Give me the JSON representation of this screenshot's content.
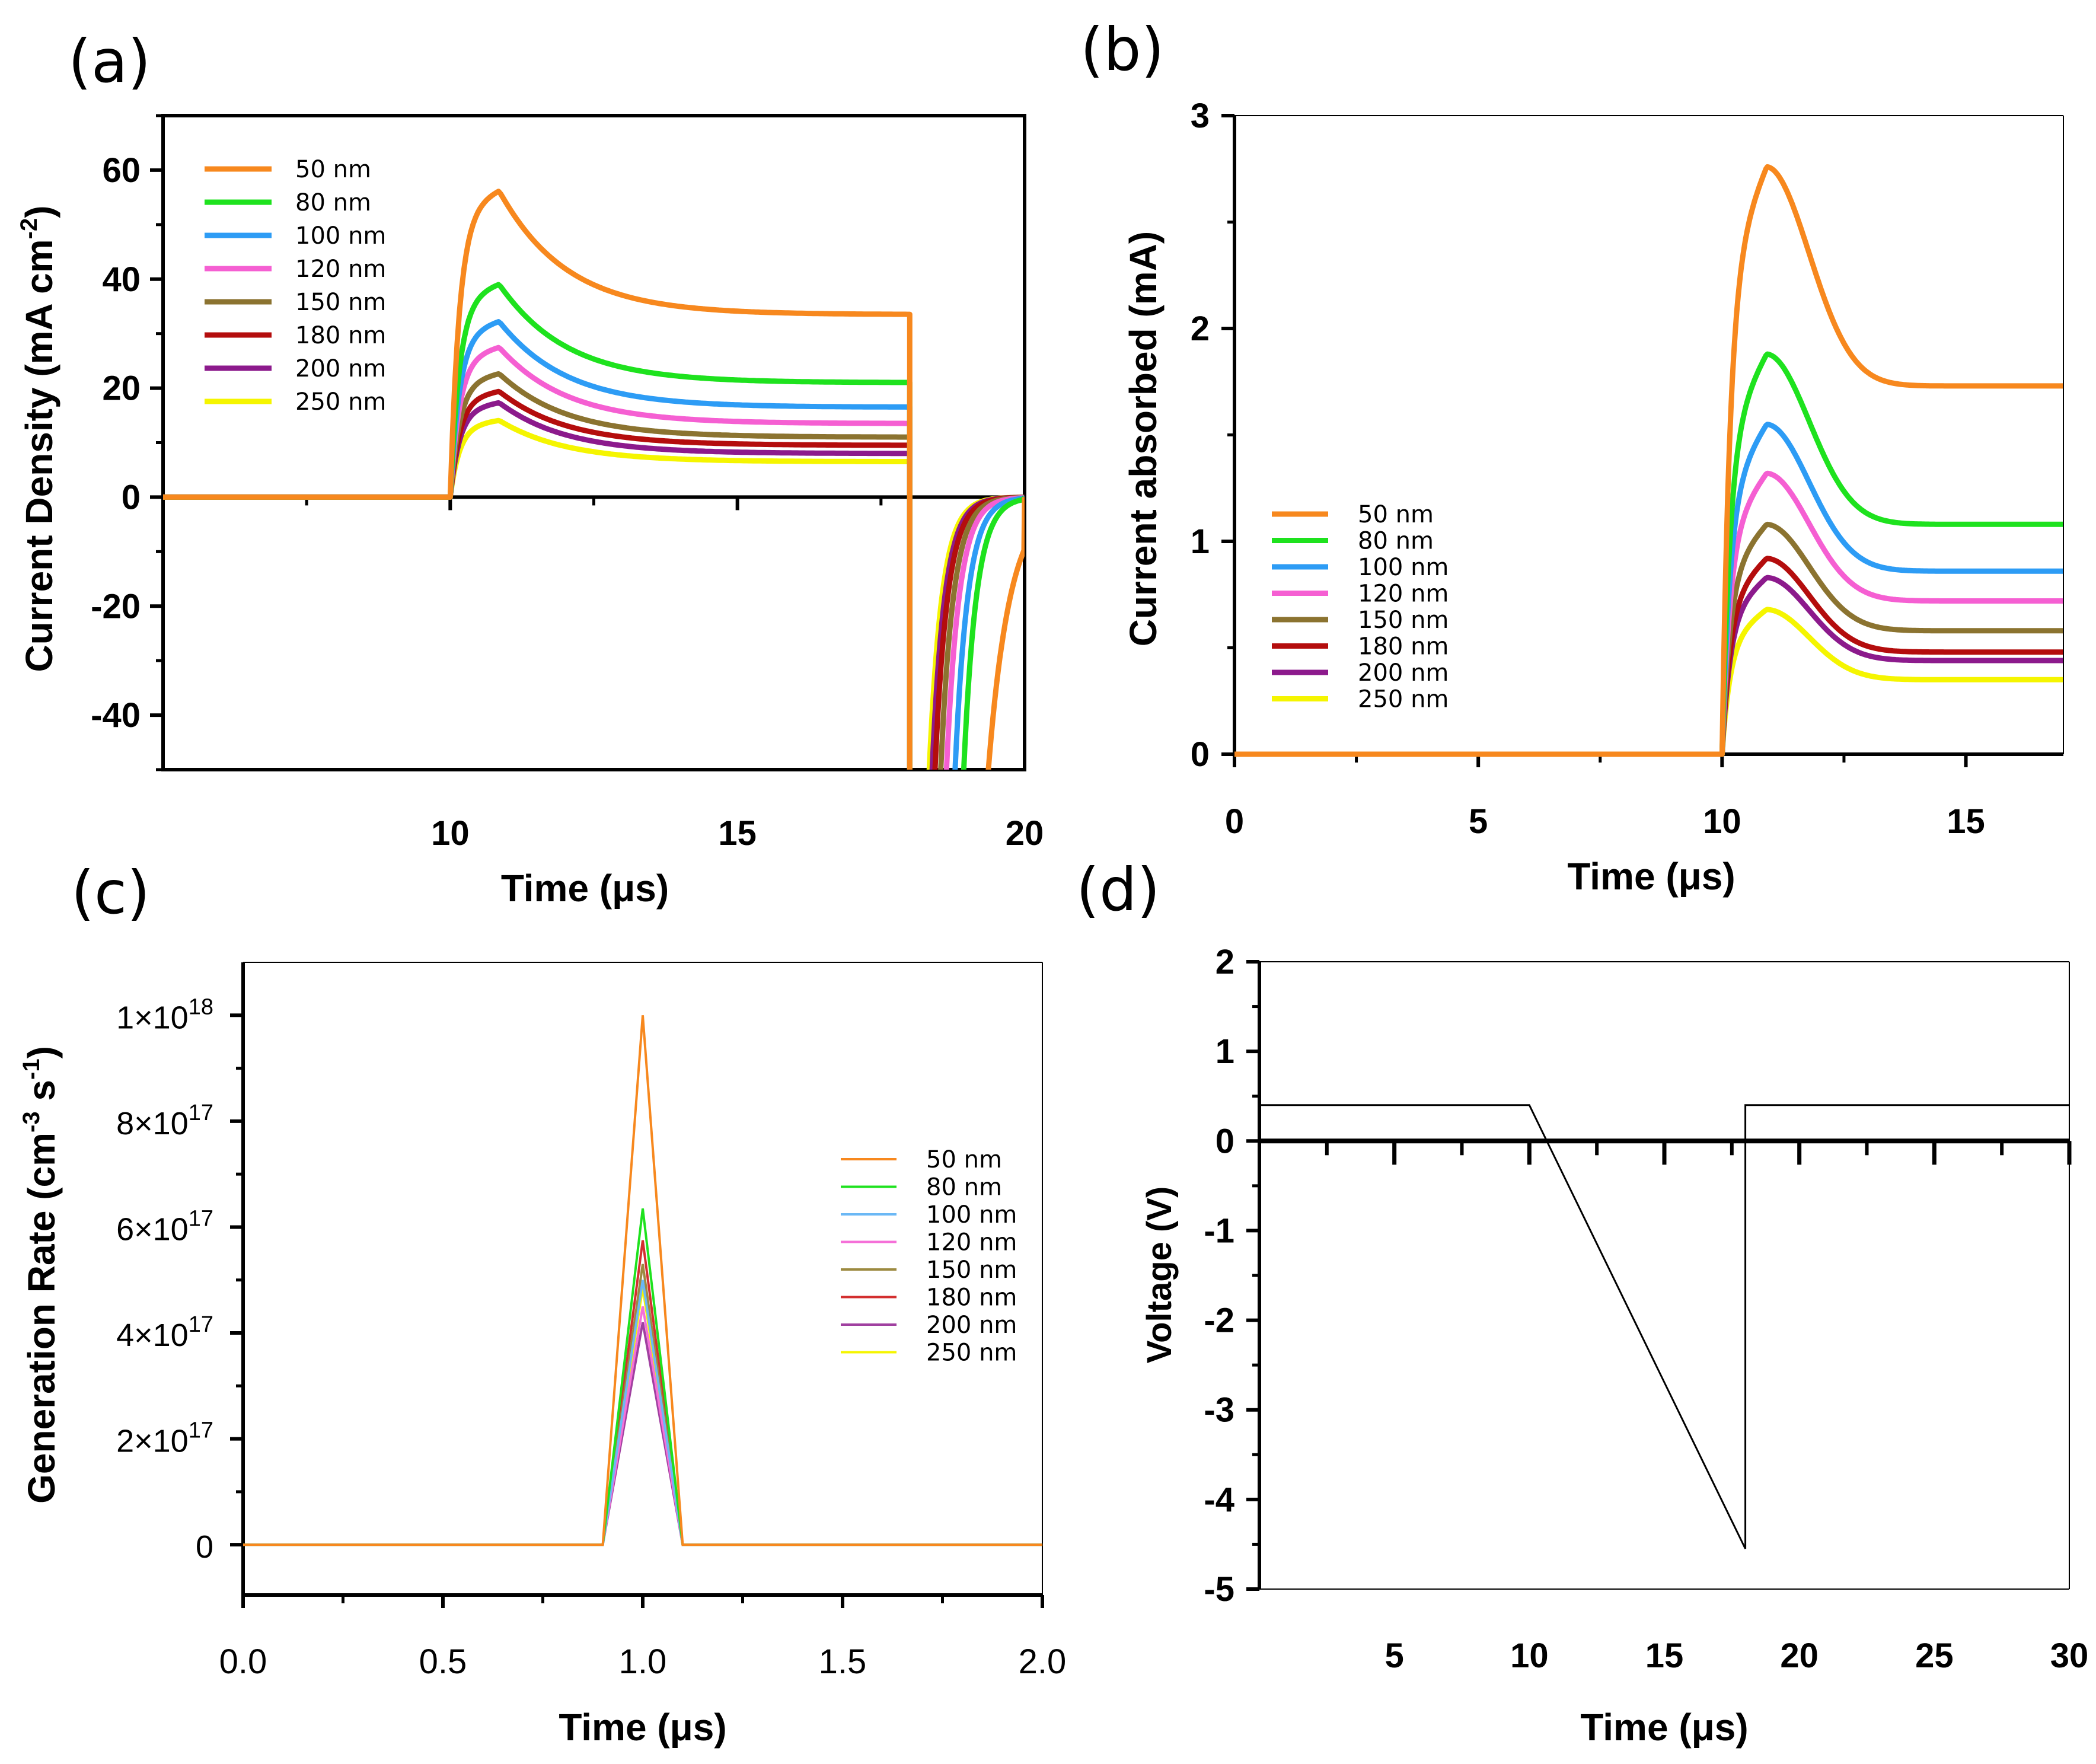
{
  "chart_data": [
    {
      "panel_label": "(a)",
      "type": "line",
      "xlabel": "Time (μs)",
      "ylabel": "Current Density (mA cm",
      "ylabel_sup": "-2",
      "ylabel_end": ")",
      "xlim": [
        5,
        20
      ],
      "ylim": [
        -50,
        70
      ],
      "xticks": [
        10,
        15,
        20
      ],
      "xtick_labels": [
        "10",
        "15",
        "20"
      ],
      "yticks": [
        -40,
        -20,
        0,
        20,
        40,
        60
      ],
      "ytick_labels": [
        "-40",
        "-20",
        "0",
        "20",
        "40",
        "60"
      ],
      "legend": "top-left",
      "series": [
        {
          "name": "50 nm",
          "color": "#f7881e",
          "peak": 53,
          "steady": 33.5,
          "tail": 19.3
        },
        {
          "name": "80 nm",
          "color": "#1ee21e",
          "peak": 36.5,
          "steady": 21,
          "tail": 18.9
        },
        {
          "name": "100 nm",
          "color": "#2d9cf5",
          "peak": 30,
          "steady": 16.5,
          "tail": 18.75
        },
        {
          "name": "120 nm",
          "color": "#f55fd2",
          "peak": 25.5,
          "steady": 13.5,
          "tail": 18.6
        },
        {
          "name": "150 nm",
          "color": "#8b7330",
          "peak": 21,
          "steady": 11,
          "tail": 18.5
        },
        {
          "name": "180 nm",
          "color": "#b40d0d",
          "peak": 18,
          "steady": 9.5,
          "tail": 18.4
        },
        {
          "name": "200 nm",
          "color": "#8c1a8c",
          "peak": 16,
          "steady": 8,
          "tail": 18.35
        },
        {
          "name": "250 nm",
          "color": "#f5f500",
          "peak": 13,
          "steady": 6.5,
          "tail": 18.3
        }
      ]
    },
    {
      "panel_label": "(b)",
      "type": "line",
      "xlabel": "Time (μs)",
      "ylabel": "Current absorbed (mA)",
      "xlim": [
        0,
        17
      ],
      "ylim": [
        0,
        3
      ],
      "xticks": [
        0,
        5,
        10,
        15
      ],
      "xtick_labels": [
        "0",
        "5",
        "10",
        "15"
      ],
      "yticks": [
        0,
        1,
        2,
        3
      ],
      "ytick_labels": [
        "0",
        "1",
        "2",
        "3"
      ],
      "legend": "left",
      "series": [
        {
          "name": "50 nm",
          "color": "#f7881e",
          "peak": 2.76,
          "steady": 1.73
        },
        {
          "name": "80 nm",
          "color": "#1ee21e",
          "peak": 1.88,
          "steady": 1.08
        },
        {
          "name": "100 nm",
          "color": "#2d9cf5",
          "peak": 1.55,
          "steady": 0.86
        },
        {
          "name": "120 nm",
          "color": "#f55fd2",
          "peak": 1.32,
          "steady": 0.72
        },
        {
          "name": "150 nm",
          "color": "#8b7330",
          "peak": 1.08,
          "steady": 0.58
        },
        {
          "name": "180 nm",
          "color": "#b40d0d",
          "peak": 0.92,
          "steady": 0.48
        },
        {
          "name": "200 nm",
          "color": "#8c1a8c",
          "peak": 0.83,
          "steady": 0.44
        },
        {
          "name": "250 nm",
          "color": "#f5f500",
          "peak": 0.68,
          "steady": 0.35
        }
      ]
    },
    {
      "panel_label": "(c)",
      "type": "line",
      "xlabel": "Time (μs)",
      "ylabel": "Generation Rate (cm",
      "ylabel_sup": "-3",
      "ylabel_mid": " s",
      "ylabel_sup2": "-1",
      "ylabel_end": ")",
      "xlim": [
        0,
        2
      ],
      "ylim": [
        -9.5e+16,
        1.1e+18
      ],
      "xticks": [
        0,
        0.5,
        1,
        1.5,
        2
      ],
      "xtick_labels": [
        "0.0",
        "0.5",
        "1.0",
        "1.5",
        "2.0"
      ],
      "yticks": [
        0,
        2e+17,
        4e+17,
        6e+17,
        8e+17,
        1e+18
      ],
      "ytick_base": [
        "0",
        "2×10",
        "4×10",
        "6×10",
        "8×10",
        "1×10"
      ],
      "ytick_exp": [
        "",
        "17",
        "17",
        "17",
        "17",
        "18"
      ],
      "legend": "right",
      "series": [
        {
          "name": "50 nm",
          "color": "#f7881e",
          "peak": 1e+18
        },
        {
          "name": "80 nm",
          "color": "#1ee21e",
          "peak": 6.35e+17
        },
        {
          "name": "100 nm",
          "color": "#6bb8f5",
          "peak": 5e+17
        },
        {
          "name": "120 nm",
          "color": "#f570d8",
          "peak": 4.5e+17
        },
        {
          "name": "150 nm",
          "color": "#9c8a40",
          "peak": 5.3e+17
        },
        {
          "name": "180 nm",
          "color": "#d32f2f",
          "peak": 5.75e+17
        },
        {
          "name": "200 nm",
          "color": "#a040a0",
          "peak": 4.2e+17
        },
        {
          "name": "250 nm",
          "color": "#f5f500",
          "peak": 4.85e+17
        }
      ],
      "pulse": {
        "start": 0.9,
        "center": 1.0,
        "end": 1.1
      }
    },
    {
      "panel_label": "(d)",
      "type": "line",
      "xlabel": "Time (μs)",
      "ylabel": "Voltage (V)",
      "xlim": [
        0,
        30
      ],
      "ylim": [
        -5,
        2
      ],
      "xticks": [
        5,
        10,
        15,
        20,
        25,
        30
      ],
      "xtick_labels": [
        "5",
        "10",
        "15",
        "20",
        "25",
        "30"
      ],
      "yticks": [
        -5,
        -4,
        -3,
        -2,
        -1,
        0,
        1,
        2
      ],
      "ytick_labels": [
        "-5",
        "-4",
        "-3",
        "-2",
        "-1",
        "0",
        "1",
        "2"
      ],
      "series": [
        {
          "name": "voltage",
          "color": "#000000",
          "x": [
            0,
            10,
            18,
            18,
            30
          ],
          "y": [
            0.4,
            0.4,
            -4.55,
            0.4,
            0.4
          ]
        }
      ]
    }
  ]
}
